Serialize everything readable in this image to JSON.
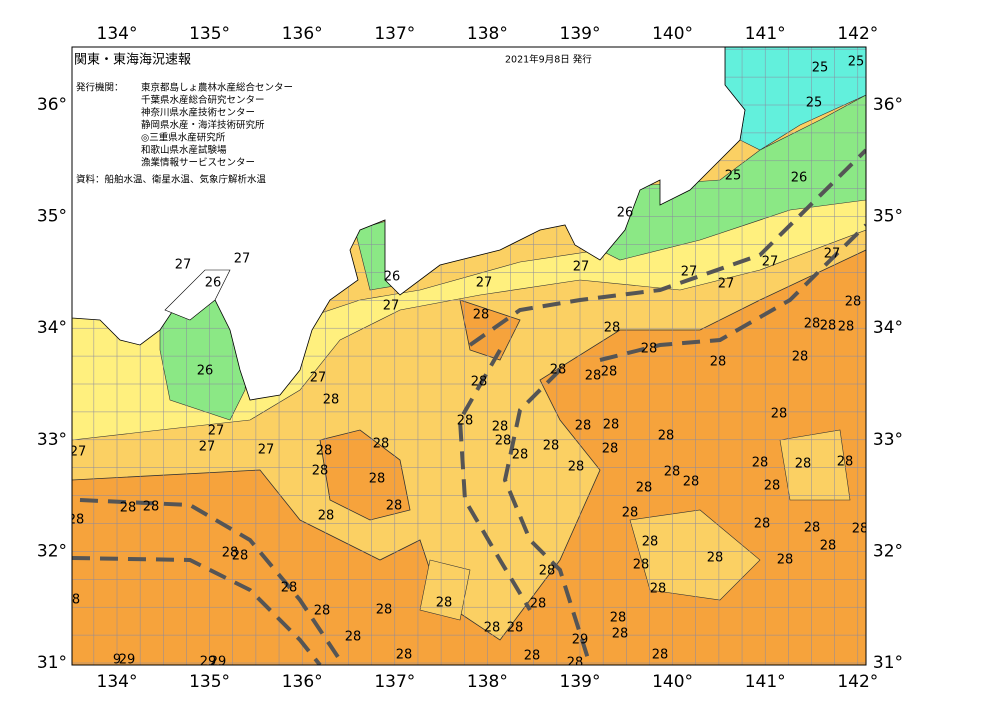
{
  "map": {
    "title": "関東・東海海況速報",
    "date": "2021年9月8日 発行",
    "issuers_label": "発行機関：",
    "issuers": [
      "東京都島しょ農林水産総合センター",
      "千葉県水産総合研究センター",
      "神奈川県水産技術センター",
      "静岡県水産・海洋技術研究所",
      "◎三重県水産研究所",
      "和歌山県水産試験場",
      "漁業情報サービスセンター"
    ],
    "source": "資料：船舶水温、衛星水温、気象庁解析水温",
    "lon_labels": [
      "134°",
      "135°",
      "136°",
      "137°",
      "138°",
      "139°",
      "140°",
      "141°",
      "142°"
    ],
    "lat_labels": [
      "31°",
      "32°",
      "33°",
      "34°",
      "35°",
      "36°"
    ],
    "contour_labels": [
      "27",
      "27",
      "26",
      "26",
      "26",
      "27",
      "27",
      "27",
      "26",
      "27",
      "27",
      "27",
      "27",
      "25",
      "26",
      "25",
      "25",
      "25",
      "27",
      "27",
      "27",
      "27",
      "27",
      "28",
      "28",
      "28",
      "28",
      "28",
      "28",
      "28",
      "28",
      "28",
      "28",
      "28",
      "28",
      "28",
      "28",
      "28",
      "28",
      "28",
      "28",
      "28",
      "28",
      "28",
      "28",
      "28",
      "28",
      "28",
      "28",
      "28",
      "28",
      "28",
      "28",
      "28",
      "28",
      "28",
      "28",
      "28",
      "28",
      "28",
      "28",
      "28",
      "28",
      "28",
      "28",
      "28",
      "28",
      "28",
      "28",
      "28",
      "28",
      "28",
      "28",
      "28",
      "28",
      "28",
      "28",
      "28",
      "28",
      "28",
      "28",
      "28",
      "28",
      "28",
      "28",
      "28",
      "28",
      "28",
      "28",
      "28",
      "28",
      "8",
      "9",
      "29",
      "29",
      "29",
      "29"
    ]
  }
}
